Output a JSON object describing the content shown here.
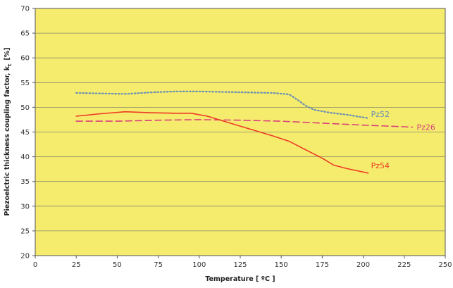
{
  "chart_data": {
    "type": "line",
    "xlabel": "Temperature [ ºC ]",
    "ylabel": "Piezoelctric thickness coupling factor, k",
    "ylabel_subscript": "t",
    "ylabel_unit": "[%]",
    "xlim": [
      0,
      250
    ],
    "ylim": [
      20,
      70
    ],
    "xticks": [
      "0",
      "25",
      "50",
      "75",
      "100",
      "125",
      "150",
      "175",
      "200",
      "225",
      "250"
    ],
    "yticks": [
      "20",
      "25",
      "30",
      "35",
      "40",
      "45",
      "50",
      "55",
      "60",
      "65",
      "70"
    ],
    "grid": true,
    "background": "#f5ec6e",
    "series": [
      {
        "name": "Pz52",
        "color": "#6b8fb0",
        "style": "dotted",
        "x": [
          25,
          40,
          55,
          70,
          85,
          100,
          115,
          130,
          145,
          155,
          160,
          165,
          170,
          180,
          190,
          203
        ],
        "y": [
          52.9,
          52.8,
          52.7,
          53.0,
          53.2,
          53.2,
          53.1,
          53.0,
          52.9,
          52.6,
          51.5,
          50.3,
          49.5,
          48.9,
          48.5,
          47.8
        ]
      },
      {
        "name": "Pz26",
        "color": "#d9407a",
        "style": "dashed",
        "x": [
          25,
          50,
          75,
          100,
          125,
          150,
          175,
          200,
          230
        ],
        "y": [
          47.2,
          47.2,
          47.4,
          47.5,
          47.4,
          47.2,
          46.8,
          46.4,
          46.0
        ]
      },
      {
        "name": "Pz54",
        "color": "#ee3a24",
        "style": "solid",
        "x": [
          25,
          40,
          55,
          70,
          85,
          95,
          105,
          115,
          125,
          135,
          145,
          155,
          165,
          175,
          182,
          190,
          203
        ],
        "y": [
          48.2,
          48.7,
          49.1,
          48.9,
          48.8,
          48.8,
          48.2,
          47.2,
          46.2,
          45.2,
          44.2,
          43.1,
          41.4,
          39.7,
          38.3,
          37.6,
          36.7
        ]
      }
    ]
  }
}
